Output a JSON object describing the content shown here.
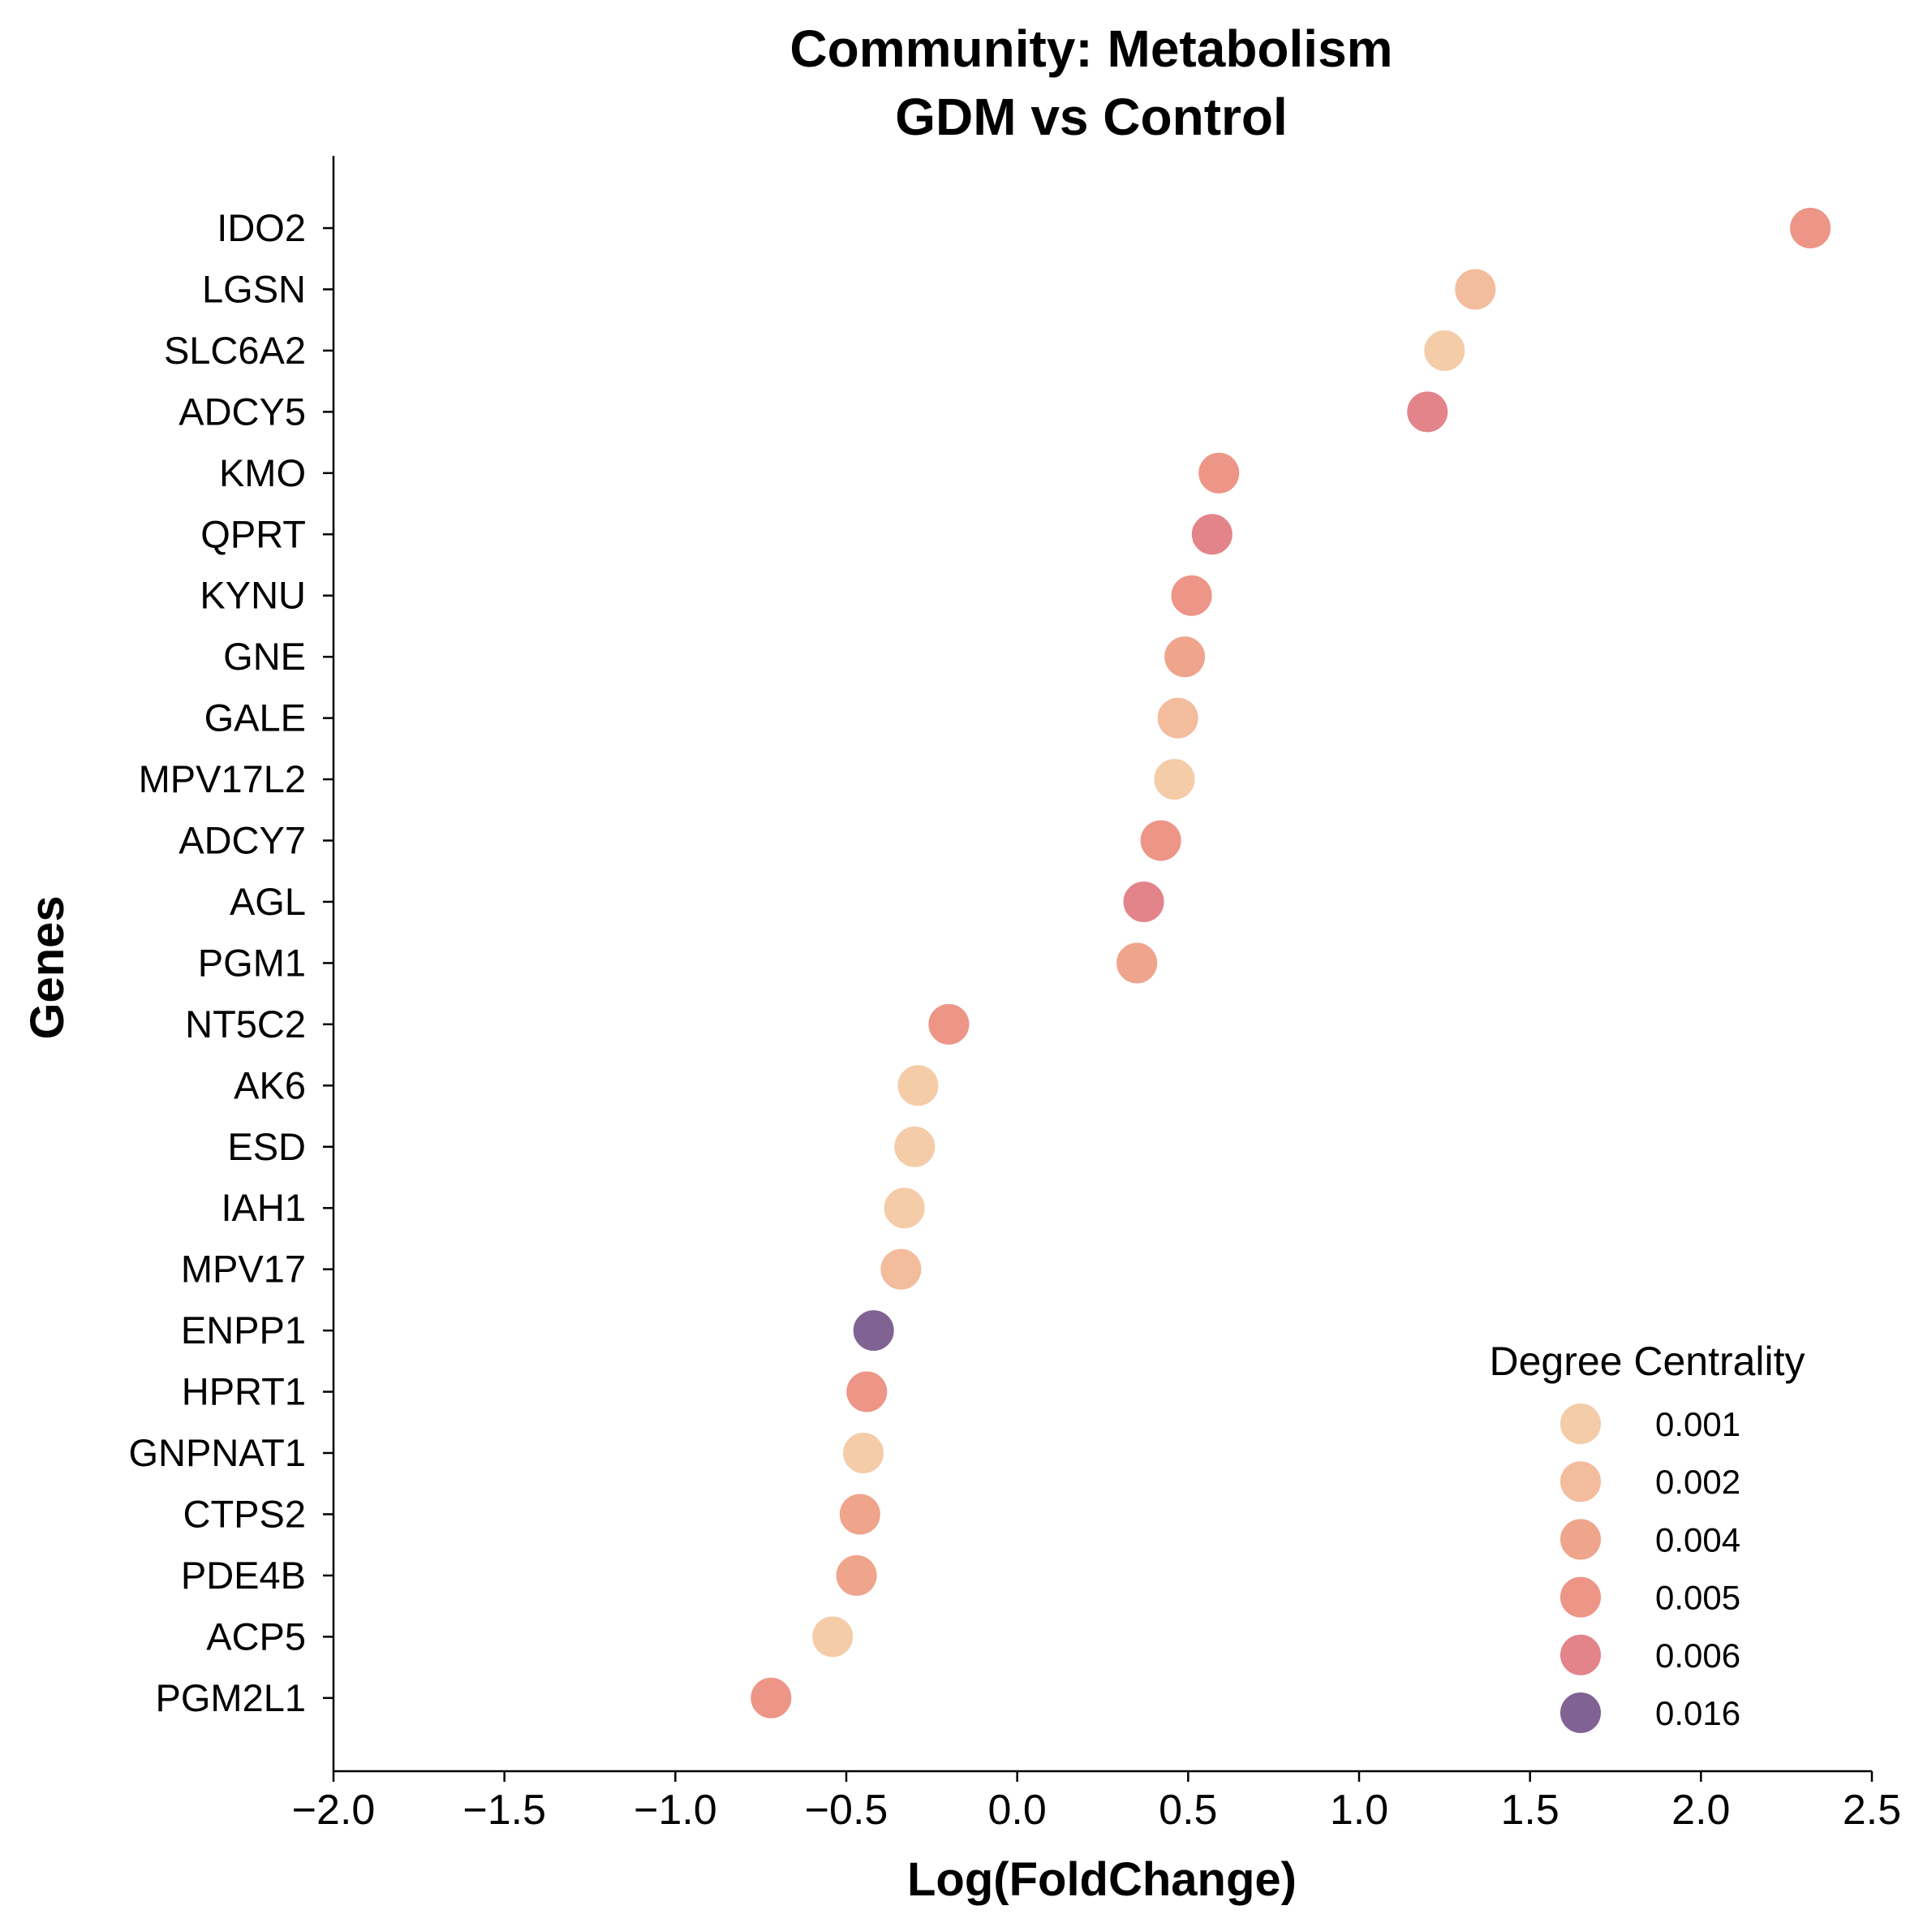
{
  "chart_data": {
    "type": "scatter",
    "title": [
      "Community: Metabolism",
      "GDM vs Control"
    ],
    "xlabel": "Log(FoldChange)",
    "ylabel": "Genes",
    "xlim": [
      -2.0,
      2.5
    ],
    "xticks": [
      "−2.0",
      "−1.5",
      "−1.0",
      "−0.5",
      "0.0",
      "0.5",
      "1.0",
      "1.5",
      "2.0",
      "2.5"
    ],
    "grid": false,
    "legend": {
      "title": "Degree Centrality",
      "placement": "lower-right",
      "entries": [
        {
          "label": "0.001",
          "color": "#f3c9a3"
        },
        {
          "label": "0.002",
          "color": "#f2b898"
        },
        {
          "label": "0.004",
          "color": "#ee9f86"
        },
        {
          "label": "0.005",
          "color": "#ec8f80"
        },
        {
          "label": "0.006",
          "color": "#e17c84"
        },
        {
          "label": "0.016",
          "color": "#7a5b8d"
        }
      ]
    },
    "points": [
      {
        "gene": "IDO2",
        "x": 2.32,
        "color": "#ec8f80"
      },
      {
        "gene": "LGSN",
        "x": 1.34,
        "color": "#f2b898"
      },
      {
        "gene": "SLC6A2",
        "x": 1.25,
        "color": "#f3c9a3"
      },
      {
        "gene": "ADCY5",
        "x": 1.2,
        "color": "#e17c84"
      },
      {
        "gene": "KMO",
        "x": 0.59,
        "color": "#ec8f80"
      },
      {
        "gene": "QPRT",
        "x": 0.57,
        "color": "#e17c84"
      },
      {
        "gene": "KYNU",
        "x": 0.51,
        "color": "#ec8f80"
      },
      {
        "gene": "GNE",
        "x": 0.49,
        "color": "#ee9f86"
      },
      {
        "gene": "GALE",
        "x": 0.47,
        "color": "#f2b898"
      },
      {
        "gene": "MPV17L2",
        "x": 0.46,
        "color": "#f3c9a3"
      },
      {
        "gene": "ADCY7",
        "x": 0.42,
        "color": "#ec8f80"
      },
      {
        "gene": "AGL",
        "x": 0.37,
        "color": "#e17c84"
      },
      {
        "gene": "PGM1",
        "x": 0.35,
        "color": "#ee9f86"
      },
      {
        "gene": "NT5C2",
        "x": -0.2,
        "color": "#ec8f80"
      },
      {
        "gene": "AK6",
        "x": -0.29,
        "color": "#f3c9a3"
      },
      {
        "gene": "ESD",
        "x": -0.3,
        "color": "#f3c9a3"
      },
      {
        "gene": "IAH1",
        "x": -0.33,
        "color": "#f3c9a3"
      },
      {
        "gene": "MPV17",
        "x": -0.34,
        "color": "#f2b898"
      },
      {
        "gene": "ENPP1",
        "x": -0.42,
        "color": "#7a5b8d"
      },
      {
        "gene": "HPRT1",
        "x": -0.44,
        "color": "#ec8f80"
      },
      {
        "gene": "GNPNAT1",
        "x": -0.45,
        "color": "#f3c9a3"
      },
      {
        "gene": "CTPS2",
        "x": -0.46,
        "color": "#ee9f86"
      },
      {
        "gene": "PDE4B",
        "x": -0.47,
        "color": "#ee9f86"
      },
      {
        "gene": "ACP5",
        "x": -0.54,
        "color": "#f3c9a3"
      },
      {
        "gene": "PGM2L1",
        "x": -0.72,
        "color": "#ec8f80"
      }
    ]
  }
}
